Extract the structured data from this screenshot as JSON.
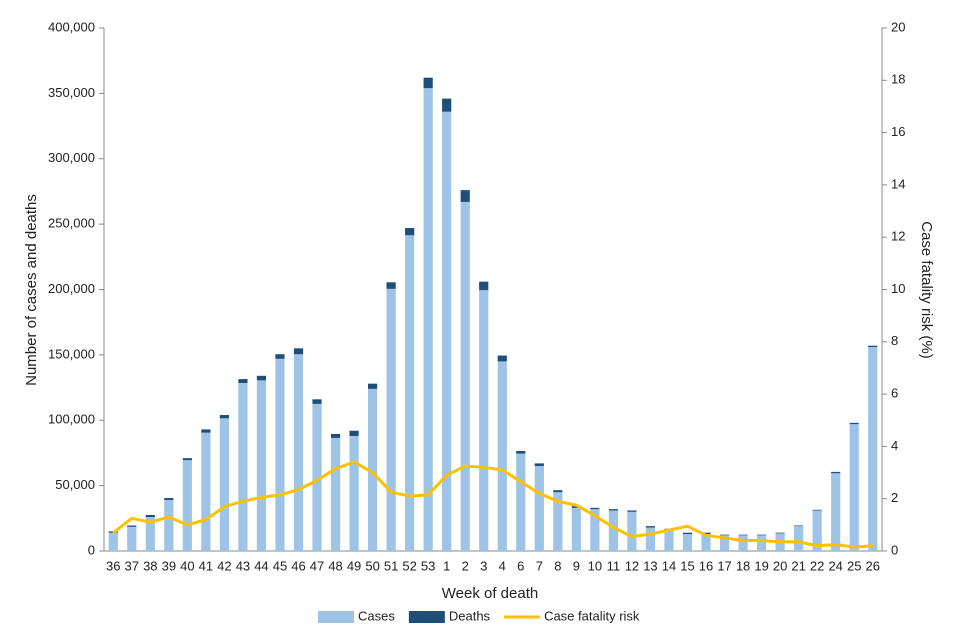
{
  "chart_data": {
    "type": "bar",
    "stacked": true,
    "x_label": "Week of death",
    "y_label": "Number of cases and deaths",
    "y2_label": "Case fatality risk (%)",
    "categories": [
      "36",
      "37",
      "38",
      "39",
      "40",
      "41",
      "42",
      "43",
      "44",
      "45",
      "46",
      "47",
      "48",
      "49",
      "50",
      "51",
      "52",
      "53",
      "1",
      "2",
      "3",
      "4",
      "6",
      "7",
      "8",
      "9",
      "10",
      "11",
      "12",
      "13",
      "14",
      "15",
      "16",
      "17",
      "18",
      "19",
      "20",
      "21",
      "22",
      "24",
      "25",
      "26"
    ],
    "series": [
      {
        "name": "Cases",
        "type": "bar",
        "color": "#9dc3e6",
        "values": [
          14000,
          18500,
          26000,
          39000,
          69500,
          90500,
          101500,
          128500,
          130500,
          147000,
          150500,
          112500,
          86500,
          88000,
          124000,
          200500,
          241500,
          354000,
          336000,
          267000,
          199500,
          145000,
          74500,
          65000,
          45000,
          33000,
          32000,
          31000,
          30000,
          18000,
          16500,
          13000,
          13000,
          12000,
          12000,
          12000,
          13500,
          19000,
          31000,
          59500,
          97000,
          156000
        ]
      },
      {
        "name": "Deaths",
        "type": "bar",
        "color": "#1f4e79",
        "values": [
          1000,
          1000,
          1500,
          1500,
          1500,
          2500,
          2500,
          3000,
          3500,
          3500,
          4500,
          3500,
          3000,
          4000,
          4000,
          5000,
          5500,
          8000,
          10000,
          9000,
          6500,
          4500,
          2000,
          2000,
          1500,
          1500,
          1000,
          1000,
          1000,
          1000,
          500,
          1000,
          1000,
          500,
          500,
          500,
          500,
          500,
          500,
          1000,
          1000,
          1000
        ]
      },
      {
        "name": "Case fatality risk",
        "type": "line",
        "axis": "y2",
        "color": "#ffc000",
        "values": [
          0.7,
          1.25,
          1.1,
          1.3,
          1.0,
          1.2,
          1.7,
          1.9,
          2.05,
          2.15,
          2.35,
          2.7,
          3.15,
          3.4,
          3.0,
          2.25,
          2.1,
          2.15,
          2.9,
          3.25,
          3.2,
          3.1,
          2.65,
          2.2,
          1.9,
          1.75,
          1.35,
          0.9,
          0.55,
          0.65,
          0.8,
          0.95,
          0.6,
          0.5,
          0.4,
          0.4,
          0.35,
          0.35,
          0.2,
          0.25,
          0.15,
          0.2
        ]
      }
    ],
    "ylim": [
      0,
      400000
    ],
    "yticks": [
      0,
      {
        "value": 50000,
        "label": "50,000"
      },
      {
        "value": 100000,
        "label": "100,000"
      },
      {
        "value": 150000,
        "label": "150,000"
      },
      {
        "value": 200000,
        "label": "200,000"
      },
      {
        "value": 250000,
        "label": "250,000"
      },
      {
        "value": 300000,
        "label": "300,000"
      },
      {
        "value": 350000,
        "label": "350,000"
      },
      {
        "value": 400000,
        "label": "400,000"
      }
    ],
    "y2lim": [
      0,
      20
    ],
    "y2ticks": [
      0,
      2,
      4,
      6,
      8,
      10,
      12,
      14,
      16,
      18,
      20
    ],
    "grid": false,
    "legend": "bottom"
  }
}
